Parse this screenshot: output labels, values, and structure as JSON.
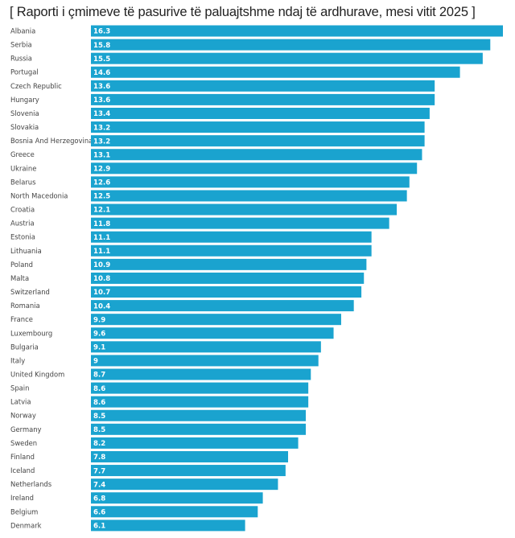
{
  "chart_data": {
    "type": "bar",
    "orientation": "horizontal",
    "title": "[ Raporti i çmimeve të pasurive të paluajtshme ndaj të ardhurave, mesi vitit 2025 ]",
    "xlabel": "",
    "ylabel": "",
    "xlim": [
      0,
      16.3
    ],
    "grid": false,
    "bar_color": "#1aa3cf",
    "categories": [
      "Albania",
      "Serbia",
      "Russia",
      "Portugal",
      "Czech Republic",
      "Hungary",
      "Slovenia",
      "Slovakia",
      "Bosnia And Herzegovina",
      "Greece",
      "Ukraine",
      "Belarus",
      "North Macedonia",
      "Croatia",
      "Austria",
      "Estonia",
      "Lithuania",
      "Poland",
      "Malta",
      "Switzerland",
      "Romania",
      "France",
      "Luxembourg",
      "Bulgaria",
      "Italy",
      "United Kingdom",
      "Spain",
      "Latvia",
      "Norway",
      "Germany",
      "Sweden",
      "Finland",
      "Iceland",
      "Netherlands",
      "Ireland",
      "Belgium",
      "Denmark"
    ],
    "values": [
      16.3,
      15.8,
      15.5,
      14.6,
      13.6,
      13.6,
      13.4,
      13.2,
      13.2,
      13.1,
      12.9,
      12.6,
      12.5,
      12.1,
      11.8,
      11.1,
      11.1,
      10.9,
      10.8,
      10.7,
      10.4,
      9.9,
      9.6,
      9.1,
      9,
      8.7,
      8.6,
      8.6,
      8.5,
      8.5,
      8.2,
      7.8,
      7.7,
      7.4,
      6.8,
      6.6,
      6.1
    ]
  }
}
